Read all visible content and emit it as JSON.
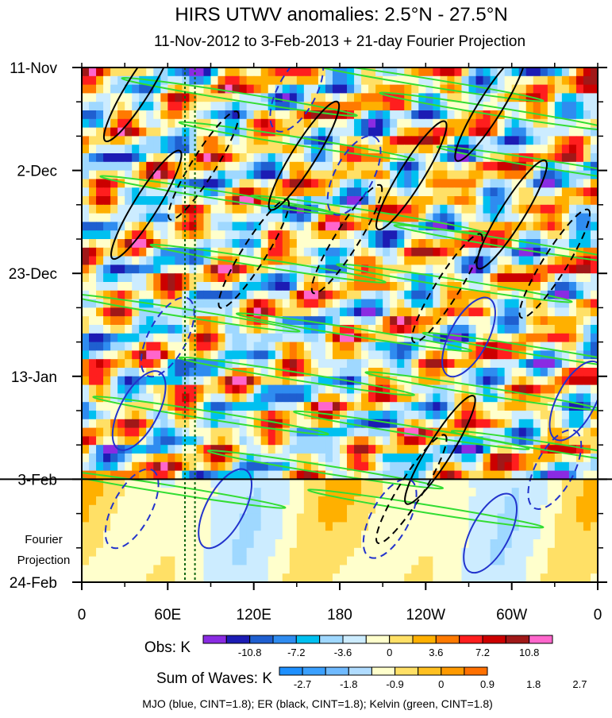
{
  "chart_data": {
    "type": "heatmap",
    "title": "HIRS UTWV anomalies: 2.5°N - 27.5°N",
    "subtitle": "11-Nov-2012 to 3-Feb-2013 + 21-day Fourier Projection",
    "xlabel": "",
    "ylabel": "",
    "x_ticks": [
      "0",
      "60E",
      "120E",
      "180",
      "120W",
      "60W",
      "0"
    ],
    "x_tick_degrees": [
      0,
      60,
      120,
      180,
      240,
      300,
      360
    ],
    "xlim": [
      0,
      360
    ],
    "y_ticks": [
      "11-Nov",
      "2-Dec",
      "23-Dec",
      "13-Jan",
      "3-Feb",
      "24-Feb"
    ],
    "y_tick_days": [
      0,
      21,
      42,
      63,
      84,
      105
    ],
    "ylim": [
      0,
      105
    ],
    "forecast_start_day": 84,
    "forecast_label": [
      "Fourier",
      "Projection"
    ],
    "reference_lines_deg": [
      72,
      79
    ],
    "obs_colorbar": {
      "label": "Obs: K",
      "ticks": [
        "-10.8",
        "-7.2",
        "-3.6",
        "0",
        "3.6",
        "7.2",
        "10.8"
      ],
      "colors": [
        "#8a2be2",
        "#1c1cb4",
        "#1f5fd0",
        "#2f8cf0",
        "#00c0f0",
        "#9fd8ff",
        "#ccecff",
        "#ffffcc",
        "#ffe066",
        "#ffb000",
        "#ff7a00",
        "#ff1e1e",
        "#cc0000",
        "#a01818",
        "#ff66cc"
      ]
    },
    "waves_colorbar": {
      "label": "Sum of Waves: K",
      "ticks": [
        "-2.7",
        "-1.8",
        "-0.9",
        "0",
        "0.9",
        "1.8",
        "2.7"
      ],
      "colors": [
        "#1e90ff",
        "#3aa0ff",
        "#6fbaff",
        "#b0dcff",
        "#ffffcc",
        "#ffe066",
        "#ffc020",
        "#ff9a00",
        "#ff7000"
      ]
    },
    "series": [
      {
        "name": "MJO",
        "color": "blue",
        "cint": 1.8
      },
      {
        "name": "ER",
        "color": "black",
        "cint": 1.8
      },
      {
        "name": "Kelvin",
        "color": "green",
        "cint": 1.8
      }
    ],
    "footer": "MJO (blue, CINT=1.8); ER (black, CINT=1.8); Kelvin (green, CINT=1.8)"
  }
}
